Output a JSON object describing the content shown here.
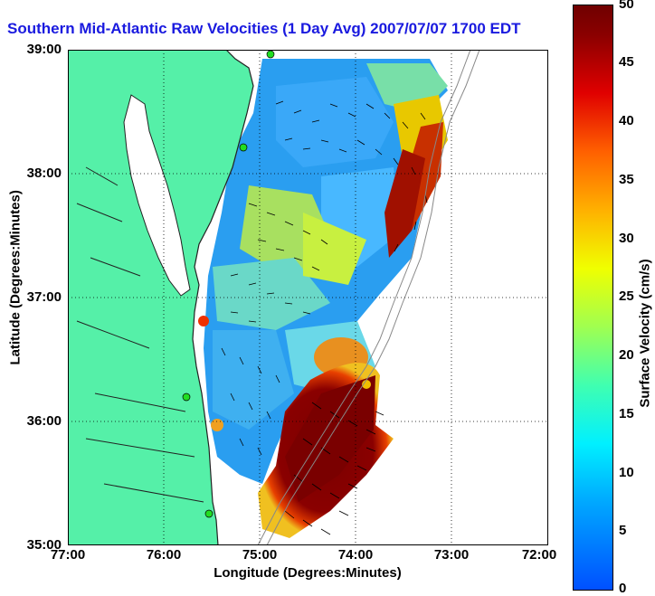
{
  "title": "Southern Mid-Atlantic Raw Velocities (1 Day Avg) 2007/07/07 1700 EDT",
  "axes": {
    "xlabel": "Longitude (Degrees:Minutes)",
    "ylabel": "Latitude (Degrees:Minutes)",
    "xticks": [
      "77:00",
      "76:00",
      "75:00",
      "74:00",
      "73:00",
      "72:00"
    ],
    "yticks": [
      "39:00",
      "38:00",
      "37:00",
      "36:00",
      "35:00"
    ]
  },
  "colorbar": {
    "label": "Surface Velocity (cm/s)",
    "ticks": [
      "50",
      "45",
      "40",
      "35",
      "30",
      "25",
      "20",
      "15",
      "10",
      "5",
      "0"
    ],
    "min": 0,
    "max": 50
  },
  "colors": {
    "land": "#55f0a8",
    "title": "#1a1adf",
    "gridline": "#000000",
    "station": "#22dd22"
  }
}
